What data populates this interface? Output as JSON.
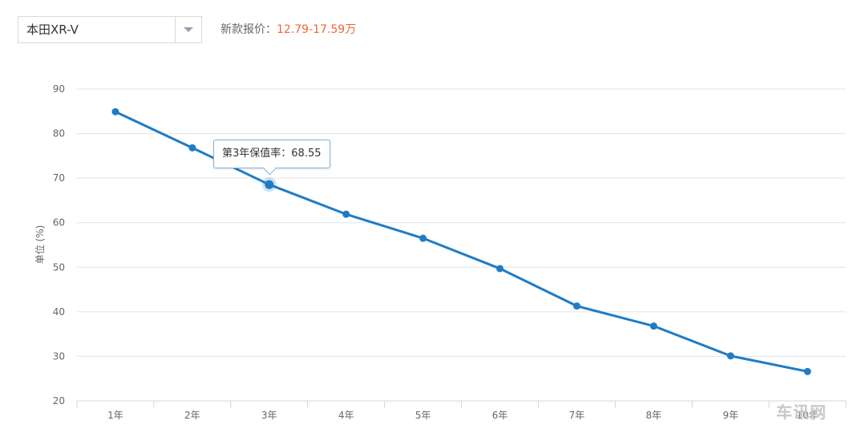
{
  "selector": {
    "value": "本田XR-V"
  },
  "price": {
    "label": "新款报价：",
    "value": "12.79-17.59万"
  },
  "tooltip": {
    "text": "第3年保值率：68.55"
  },
  "watermark": {
    "text": "车讯网"
  },
  "colors": {
    "line": "#1f7cc4",
    "price": "#f0643c",
    "grid": "#e3e3e3"
  },
  "chart_data": {
    "type": "line",
    "ylabel": "单位 (%)",
    "categories": [
      "1年",
      "2年",
      "3年",
      "4年",
      "5年",
      "6年",
      "7年",
      "8年",
      "9年",
      "10年"
    ],
    "series": [
      {
        "values": [
          84.9,
          76.8,
          68.55,
          61.9,
          56.5,
          49.7,
          41.3,
          36.8,
          30.1,
          26.6
        ]
      }
    ],
    "ylim": [
      20,
      90
    ],
    "yticks": [
      20,
      30,
      40,
      50,
      60,
      70,
      80,
      90
    ],
    "grid": true,
    "highlight_index": 2
  }
}
